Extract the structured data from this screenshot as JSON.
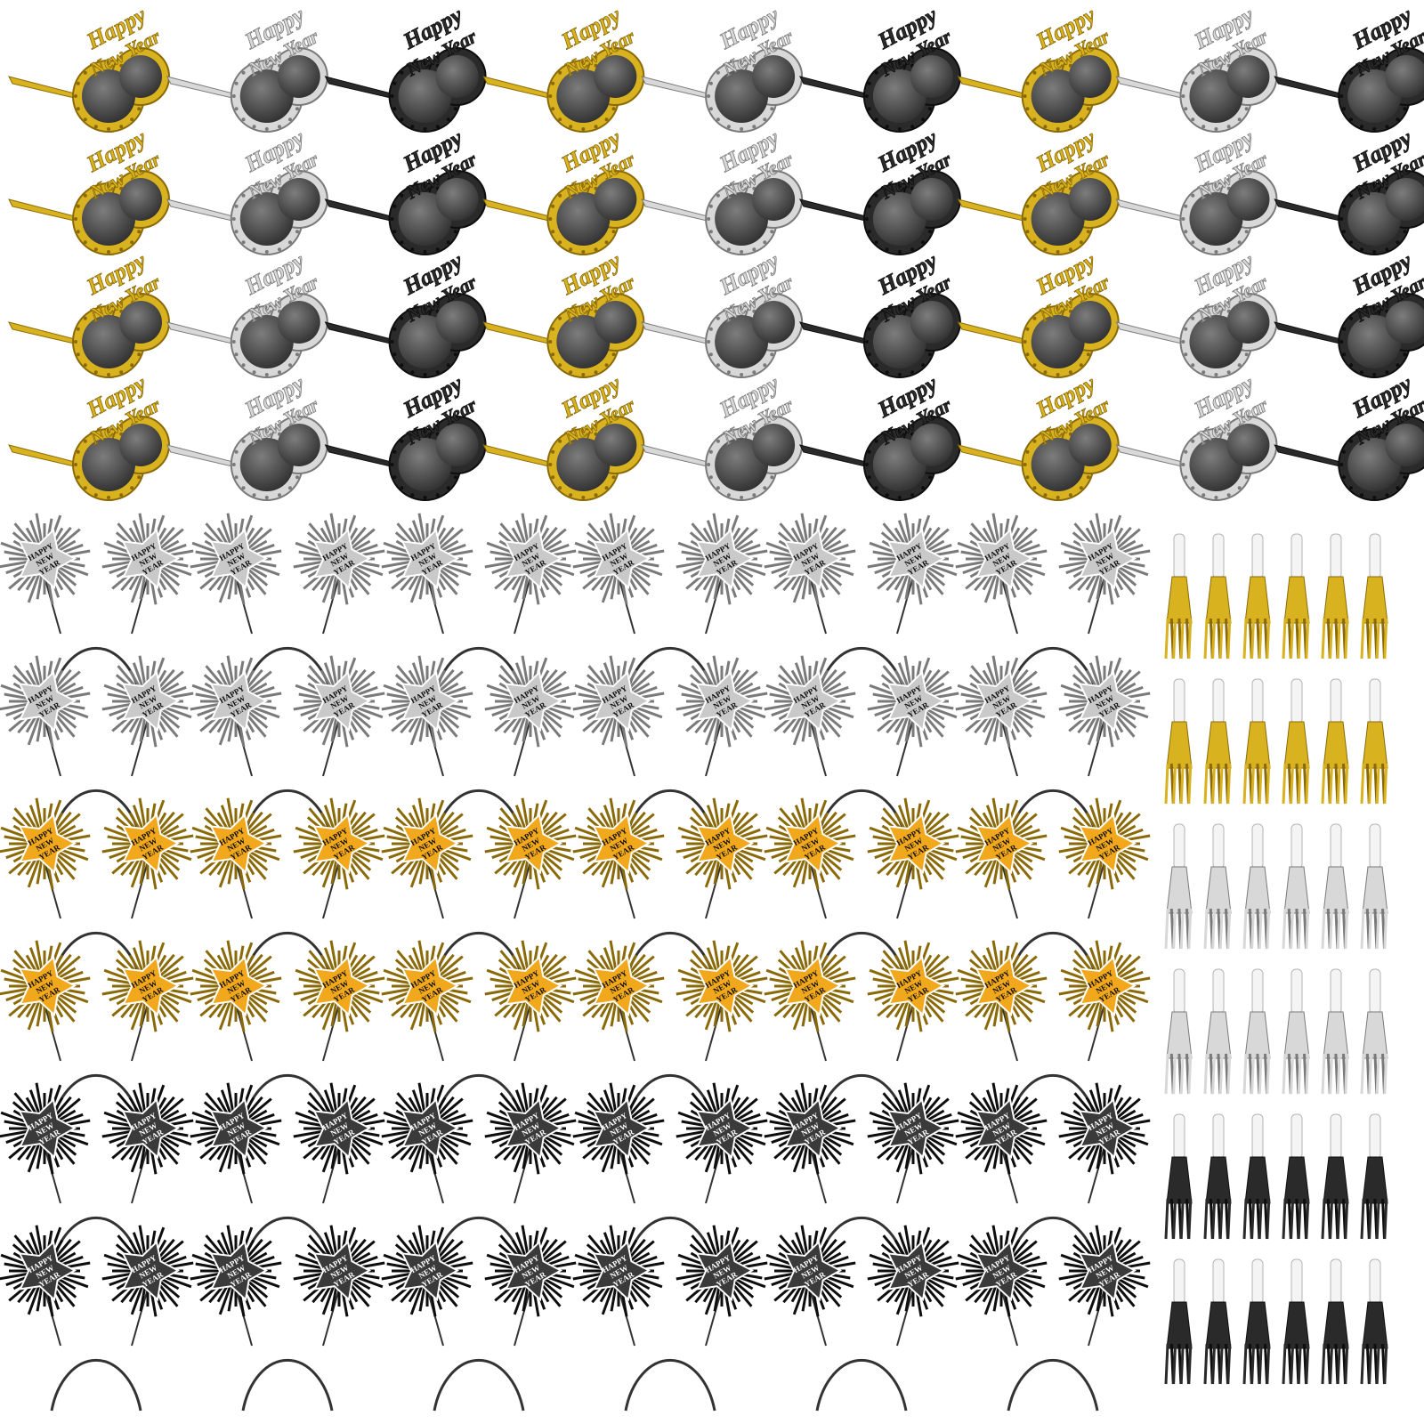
{
  "glasses": {
    "caption_lines": [
      "Happy",
      "New Year"
    ],
    "rows": 4,
    "columns": 9,
    "color_cycle": [
      "gold",
      "silver",
      "black"
    ]
  },
  "headbands": {
    "caption_lines": [
      "HAPPY",
      "NEW",
      "YEAR"
    ],
    "columns": 6,
    "row_styles": [
      "silver",
      "silver",
      "gold",
      "gold",
      "black",
      "black"
    ]
  },
  "blowers": {
    "columns": 6,
    "row_styles": [
      "gold",
      "gold",
      "silver",
      "silver",
      "black",
      "black"
    ]
  },
  "palette": {
    "gold": "#d9b21f",
    "gold_dark": "#8a6a08",
    "silver": "#d8d8d8",
    "silver_dark": "#7a7a7a",
    "black": "#2a2a2a",
    "black_dark": "#0e0e0e",
    "lens": "#4a4a4a",
    "star_gold": "#f2a81c",
    "star_silver": "#c9c9c9",
    "star_black": "#3a3a3a",
    "band": "#333333",
    "white": "#ffffff"
  }
}
